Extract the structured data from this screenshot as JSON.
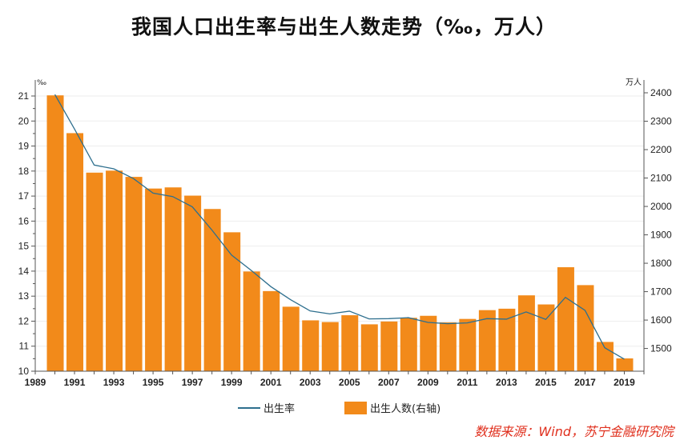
{
  "chart_data": {
    "type": "bar+line",
    "title": "我国人口出生率与出生人数走势（‰，万人）",
    "x": [
      1990,
      1991,
      1992,
      1993,
      1994,
      1995,
      1996,
      1997,
      1998,
      1999,
      2000,
      2001,
      2002,
      2003,
      2004,
      2005,
      2006,
      2007,
      2008,
      2009,
      2010,
      2011,
      2012,
      2013,
      2014,
      2015,
      2016,
      2017,
      2018,
      2019
    ],
    "xlim": [
      1989,
      2020
    ],
    "x_tick_labels": [
      "1989",
      "1991",
      "1993",
      "1995",
      "1997",
      "1999",
      "2001",
      "2003",
      "2005",
      "2007",
      "2009",
      "2011",
      "2013",
      "2015",
      "2017",
      "2019"
    ],
    "left_axis": {
      "unit": "‰",
      "ylim": [
        10,
        21
      ],
      "ticks": [
        "10",
        "11",
        "12",
        "13",
        "14",
        "15",
        "16",
        "17",
        "18",
        "19",
        "20",
        "21"
      ]
    },
    "right_axis": {
      "unit": "万人",
      "ylim": [
        1420,
        2420
      ],
      "ticks": [
        "1500",
        "1600",
        "1700",
        "1800",
        "1900",
        "2000",
        "2100",
        "2200",
        "2300",
        "2400"
      ]
    },
    "series": [
      {
        "name": "出生率",
        "type": "line",
        "axis": "left",
        "color": "#2e6f8e",
        "values": [
          21.06,
          19.68,
          18.24,
          18.09,
          17.7,
          17.12,
          16.98,
          16.57,
          15.64,
          14.64,
          14.03,
          13.38,
          12.86,
          12.41,
          12.29,
          12.4,
          12.09,
          12.1,
          12.14,
          11.95,
          11.9,
          11.93,
          12.1,
          12.08,
          12.37,
          12.07,
          12.95,
          12.43,
          10.94,
          10.48
        ]
      },
      {
        "name": "出生人数(右轴)",
        "type": "bar",
        "axis": "right",
        "color": "#f28a1a",
        "values": [
          2391,
          2258,
          2119,
          2126,
          2104,
          2063,
          2067,
          2038,
          1991,
          1909,
          1771,
          1702,
          1647,
          1599,
          1593,
          1617,
          1585,
          1595,
          1608,
          1615,
          1592,
          1604,
          1635,
          1640,
          1687,
          1655,
          1786,
          1723,
          1523,
          1465
        ]
      }
    ],
    "legend_position": "bottom"
  },
  "source": "数据来源：Wind，苏宁金融研究院"
}
